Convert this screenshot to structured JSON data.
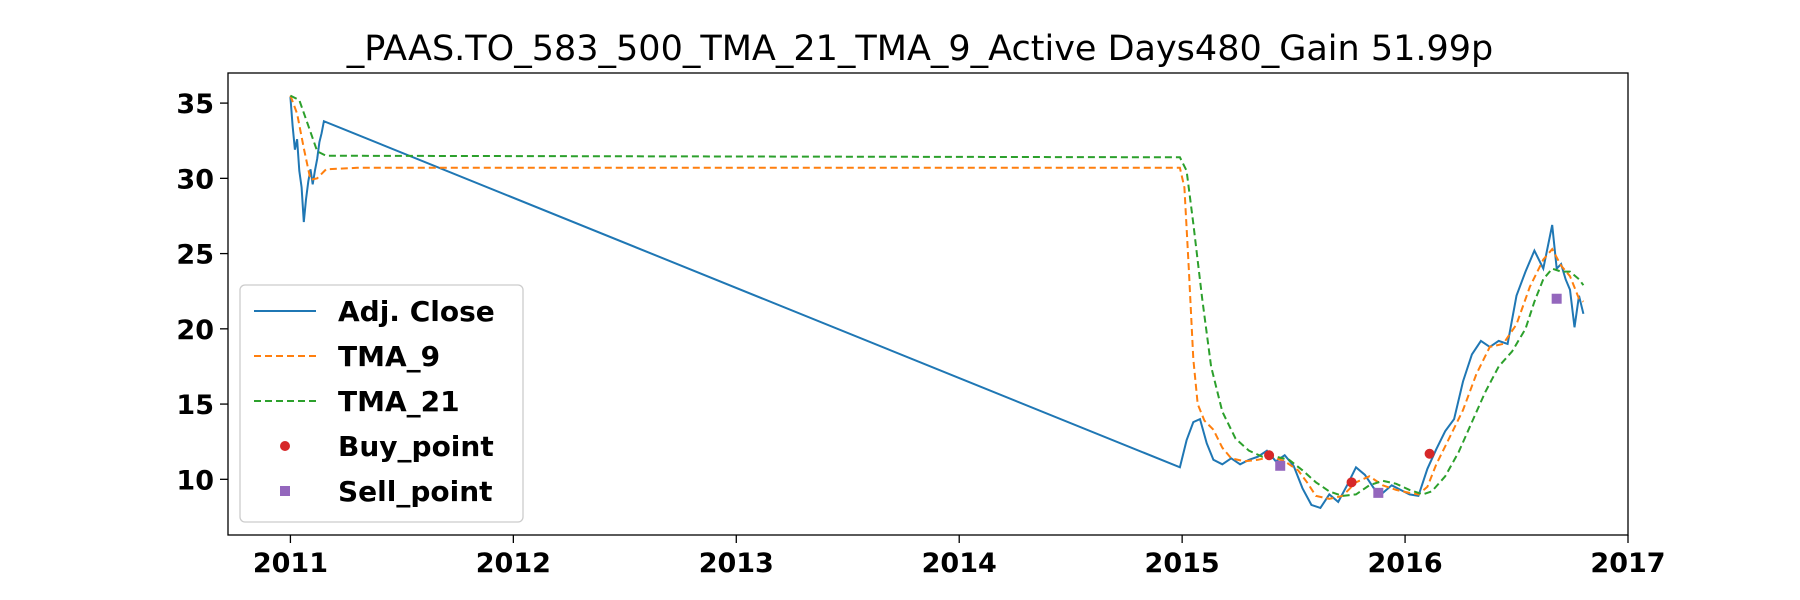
{
  "chart_data": {
    "type": "line",
    "title": "_PAAS.TO_583_500_TMA_21_TMA_9_Active Days480_Gain  51.99p",
    "xlabel": "",
    "ylabel": "",
    "xlim": [
      2010.72,
      2017.0
    ],
    "ylim": [
      6.3,
      37.0
    ],
    "x_ticks": [
      2011,
      2012,
      2013,
      2014,
      2015,
      2016,
      2017
    ],
    "y_ticks": [
      10,
      15,
      20,
      25,
      30,
      35
    ],
    "grid": false,
    "legend": "lower-left",
    "series": [
      {
        "name": "Adj. Close",
        "style": "solid",
        "color": "#1f77b4",
        "points": [
          [
            2011.0,
            35.4
          ],
          [
            2011.01,
            33.5
          ],
          [
            2011.02,
            31.9
          ],
          [
            2011.03,
            32.6
          ],
          [
            2011.04,
            30.5
          ],
          [
            2011.05,
            29.4
          ],
          [
            2011.06,
            27.1
          ],
          [
            2011.07,
            28.6
          ],
          [
            2011.08,
            29.8
          ],
          [
            2011.09,
            30.6
          ],
          [
            2011.1,
            29.6
          ],
          [
            2011.11,
            30.5
          ],
          [
            2011.12,
            31.3
          ],
          [
            2011.13,
            32.4
          ],
          [
            2011.14,
            33.0
          ],
          [
            2011.15,
            33.8
          ],
          [
            2014.99,
            10.8
          ],
          [
            2015.02,
            12.6
          ],
          [
            2015.05,
            13.8
          ],
          [
            2015.08,
            14.0
          ],
          [
            2015.11,
            12.4
          ],
          [
            2015.14,
            11.3
          ],
          [
            2015.18,
            11.0
          ],
          [
            2015.22,
            11.4
          ],
          [
            2015.26,
            11.0
          ],
          [
            2015.3,
            11.3
          ],
          [
            2015.34,
            11.5
          ],
          [
            2015.38,
            11.9
          ],
          [
            2015.42,
            11.2
          ],
          [
            2015.46,
            11.6
          ],
          [
            2015.5,
            10.9
          ],
          [
            2015.54,
            9.4
          ],
          [
            2015.58,
            8.3
          ],
          [
            2015.62,
            8.1
          ],
          [
            2015.66,
            9.0
          ],
          [
            2015.7,
            8.5
          ],
          [
            2015.74,
            9.6
          ],
          [
            2015.78,
            10.8
          ],
          [
            2015.82,
            10.3
          ],
          [
            2015.86,
            9.4
          ],
          [
            2015.9,
            9.1
          ],
          [
            2015.94,
            9.6
          ],
          [
            2015.98,
            9.3
          ],
          [
            2016.02,
            9.0
          ],
          [
            2016.06,
            8.9
          ],
          [
            2016.1,
            10.7
          ],
          [
            2016.14,
            12.0
          ],
          [
            2016.18,
            13.2
          ],
          [
            2016.22,
            14.0
          ],
          [
            2016.26,
            16.5
          ],
          [
            2016.3,
            18.3
          ],
          [
            2016.34,
            19.2
          ],
          [
            2016.38,
            18.8
          ],
          [
            2016.42,
            19.2
          ],
          [
            2016.46,
            19.0
          ],
          [
            2016.5,
            22.2
          ],
          [
            2016.54,
            23.8
          ],
          [
            2016.58,
            25.2
          ],
          [
            2016.62,
            24.0
          ],
          [
            2016.66,
            26.9
          ],
          [
            2016.68,
            24.0
          ],
          [
            2016.7,
            24.3
          ],
          [
            2016.72,
            23.3
          ],
          [
            2016.74,
            22.6
          ],
          [
            2016.76,
            20.1
          ],
          [
            2016.78,
            22.2
          ],
          [
            2016.8,
            21.0
          ]
        ]
      },
      {
        "name": "TMA_9",
        "style": "dashed",
        "color": "#ff7f0e",
        "points": [
          [
            2011.0,
            35.5
          ],
          [
            2011.03,
            34.3
          ],
          [
            2011.06,
            32.0
          ],
          [
            2011.09,
            29.9
          ],
          [
            2011.12,
            30.0
          ],
          [
            2011.16,
            30.6
          ],
          [
            2011.3,
            30.7
          ],
          [
            2014.99,
            30.7
          ],
          [
            2015.01,
            29.4
          ],
          [
            2015.03,
            24.0
          ],
          [
            2015.05,
            18.0
          ],
          [
            2015.07,
            15.0
          ],
          [
            2015.1,
            13.9
          ],
          [
            2015.14,
            13.3
          ],
          [
            2015.18,
            12.1
          ],
          [
            2015.22,
            11.4
          ],
          [
            2015.28,
            11.2
          ],
          [
            2015.34,
            11.3
          ],
          [
            2015.4,
            11.5
          ],
          [
            2015.46,
            11.2
          ],
          [
            2015.52,
            10.6
          ],
          [
            2015.56,
            9.8
          ],
          [
            2015.6,
            8.9
          ],
          [
            2015.66,
            8.7
          ],
          [
            2015.72,
            8.9
          ],
          [
            2015.78,
            9.8
          ],
          [
            2015.84,
            10.2
          ],
          [
            2015.9,
            9.6
          ],
          [
            2015.96,
            9.3
          ],
          [
            2016.02,
            9.1
          ],
          [
            2016.06,
            9.0
          ],
          [
            2016.1,
            9.5
          ],
          [
            2016.14,
            11.0
          ],
          [
            2016.2,
            12.8
          ],
          [
            2016.26,
            14.6
          ],
          [
            2016.32,
            17.0
          ],
          [
            2016.38,
            18.8
          ],
          [
            2016.44,
            19.0
          ],
          [
            2016.5,
            20.3
          ],
          [
            2016.56,
            22.8
          ],
          [
            2016.62,
            24.6
          ],
          [
            2016.66,
            25.3
          ],
          [
            2016.7,
            24.2
          ],
          [
            2016.74,
            23.5
          ],
          [
            2016.78,
            22.0
          ],
          [
            2016.8,
            21.8
          ]
        ]
      },
      {
        "name": "TMA_21",
        "style": "dashed",
        "color": "#2ca02c",
        "points": [
          [
            2011.0,
            35.5
          ],
          [
            2011.04,
            35.2
          ],
          [
            2011.08,
            33.5
          ],
          [
            2011.12,
            31.8
          ],
          [
            2011.16,
            31.5
          ],
          [
            2011.3,
            31.5
          ],
          [
            2014.99,
            31.4
          ],
          [
            2015.02,
            30.5
          ],
          [
            2015.05,
            27.0
          ],
          [
            2015.09,
            22.0
          ],
          [
            2015.13,
            17.5
          ],
          [
            2015.18,
            14.5
          ],
          [
            2015.24,
            12.7
          ],
          [
            2015.3,
            11.9
          ],
          [
            2015.36,
            11.5
          ],
          [
            2015.42,
            11.5
          ],
          [
            2015.48,
            11.3
          ],
          [
            2015.54,
            10.6
          ],
          [
            2015.6,
            9.8
          ],
          [
            2015.66,
            9.2
          ],
          [
            2015.72,
            8.9
          ],
          [
            2015.78,
            9.0
          ],
          [
            2015.84,
            9.6
          ],
          [
            2015.9,
            9.9
          ],
          [
            2015.96,
            9.7
          ],
          [
            2016.02,
            9.3
          ],
          [
            2016.08,
            9.0
          ],
          [
            2016.12,
            9.2
          ],
          [
            2016.18,
            10.2
          ],
          [
            2016.24,
            11.8
          ],
          [
            2016.3,
            13.8
          ],
          [
            2016.36,
            15.8
          ],
          [
            2016.42,
            17.5
          ],
          [
            2016.48,
            18.5
          ],
          [
            2016.54,
            20.0
          ],
          [
            2016.58,
            21.8
          ],
          [
            2016.62,
            23.3
          ],
          [
            2016.66,
            24.0
          ],
          [
            2016.7,
            23.8
          ],
          [
            2016.74,
            23.8
          ],
          [
            2016.78,
            23.3
          ],
          [
            2016.8,
            22.9
          ]
        ]
      },
      {
        "name": "Buy_point",
        "style": "marker-circle",
        "color": "#d62728",
        "points": [
          [
            2015.39,
            11.6
          ],
          [
            2015.76,
            9.8
          ],
          [
            2016.11,
            11.7
          ]
        ]
      },
      {
        "name": "Sell_point",
        "style": "marker-square",
        "color": "#9467bd",
        "points": [
          [
            2015.44,
            10.9
          ],
          [
            2015.88,
            9.1
          ],
          [
            2016.68,
            22.0
          ]
        ]
      }
    ]
  }
}
